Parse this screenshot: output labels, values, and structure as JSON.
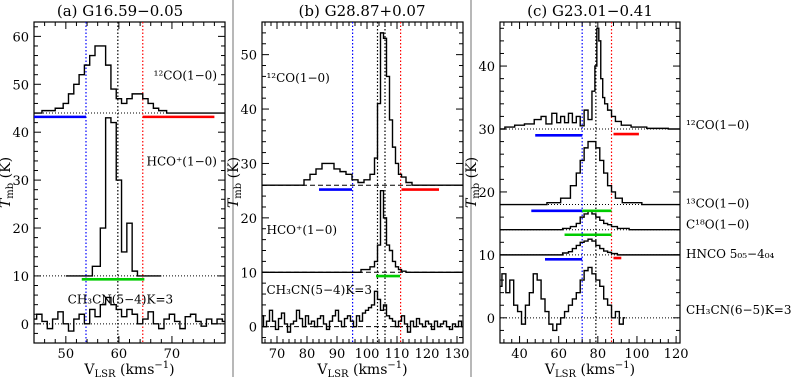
{
  "chart_data": [
    {
      "type": "line",
      "title": "(a) G16.59−0.05",
      "xlabel": "Vₗₛᵣ (kms⁻¹)",
      "xlabel_main": "V",
      "xlabel_sub": "LSR",
      "xlabel_unit": " (kms",
      "xlabel_exp": "−1",
      "xlabel_close": ")",
      "ylabel_main": "T",
      "ylabel_sub": "mb",
      "ylabel_unit": " (K)",
      "xlim": [
        44,
        80
      ],
      "ylim": [
        -4,
        63
      ],
      "xticks": [
        50,
        60,
        70
      ],
      "yticks": [
        0,
        10,
        20,
        30,
        40,
        50,
        60
      ],
      "vlines": [
        {
          "x": 53.8,
          "color": "#0000ff"
        },
        {
          "x": 59.8,
          "color": "#000000"
        },
        {
          "x": 64.5,
          "color": "#ff0000"
        }
      ],
      "series": [
        {
          "name": "12CO(1-0)",
          "label": "¹²CO(1−0)",
          "label_x": 66.5,
          "label_y": 51,
          "baseline": 44,
          "x": [
            44,
            47,
            49,
            50,
            51,
            52,
            53,
            54,
            55,
            56,
            57,
            58,
            59,
            60,
            61,
            62,
            63,
            64,
            65,
            66,
            67,
            68,
            70,
            73,
            76,
            80
          ],
          "y": [
            44,
            44.5,
            45,
            46,
            48,
            50,
            52,
            54,
            56,
            58,
            58,
            54,
            49,
            47,
            46,
            47,
            48,
            48,
            47,
            46,
            45,
            44.5,
            44,
            44,
            44,
            44
          ]
        },
        {
          "name": "HCO+(1-0)",
          "label": "HCO⁺(1−0)",
          "label_x": 66.5,
          "label_y": 33,
          "baseline": 10,
          "x": [
            50,
            54,
            56,
            57,
            58,
            59,
            60,
            61,
            62,
            63,
            64,
            65,
            68
          ],
          "y": [
            10,
            10,
            12,
            20,
            43,
            42,
            30,
            15,
            21,
            11,
            10,
            10,
            10
          ]
        },
        {
          "name": "CH3CN(5-4)K=3",
          "label": "CH₃CN(5−4)K=3",
          "label_x": 56,
          "label_y": 4.2,
          "baseline": 0,
          "x": [
            44,
            45,
            46,
            47,
            48,
            49,
            50,
            51,
            52,
            53,
            54,
            55,
            56,
            57,
            58,
            59,
            60,
            61,
            62,
            63,
            64,
            65,
            66,
            67,
            68,
            69,
            70,
            71,
            72,
            73,
            74,
            75,
            76,
            77,
            78,
            79,
            80
          ],
          "y": [
            1,
            2,
            0.5,
            -1,
            1,
            2.5,
            0,
            -1.5,
            1,
            2,
            0,
            3,
            1.5,
            4,
            5.5,
            4,
            3,
            1.5,
            3,
            2,
            0,
            1,
            2.5,
            0,
            -1,
            1,
            2,
            0.5,
            -1,
            1.5,
            2,
            0.5,
            -0.5,
            1,
            0,
            1,
            0.5
          ]
        }
      ],
      "hbars": [
        {
          "y": 43.2,
          "x1": 44,
          "x2": 53.8,
          "color": "#0000ff"
        },
        {
          "y": 43.2,
          "x1": 64.5,
          "x2": 78,
          "color": "#ff0000"
        },
        {
          "y": 9.3,
          "x1": 53,
          "x2": 64.8,
          "color": "#00cc00"
        }
      ]
    },
    {
      "type": "line",
      "title": "(b) G28.87+0.07",
      "xlabel_main": "V",
      "xlabel_sub": "LSR",
      "xlabel_unit": " (kms",
      "xlabel_exp": "−1",
      "xlabel_close": ")",
      "ylabel_main": "T",
      "ylabel_sub": "mb",
      "ylabel_unit": " (K)",
      "xlim": [
        65,
        132
      ],
      "ylim": [
        -3,
        56
      ],
      "xticks": [
        70,
        80,
        90,
        100,
        110,
        120,
        130
      ],
      "yticks": [
        0,
        10,
        20,
        30,
        40,
        50
      ],
      "vlines": [
        {
          "x": 95.2,
          "color": "#0000ff"
        },
        {
          "x": 103.5,
          "color": "#000000"
        },
        {
          "x": 106.0,
          "color": "#000000"
        },
        {
          "x": 111.2,
          "color": "#ff0000"
        }
      ],
      "series": [
        {
          "name": "12CO(1-0)",
          "label": "¹²CO(1−0)",
          "label_x": 66.5,
          "label_y": 45,
          "baseline": 26,
          "x": [
            65,
            78,
            80,
            82,
            84,
            86,
            88,
            90,
            92,
            94,
            96,
            98,
            100,
            102,
            103,
            104,
            105,
            106,
            107,
            108,
            109,
            110,
            111,
            112,
            114,
            116,
            120,
            132
          ],
          "y": [
            26,
            26,
            27,
            28,
            29,
            30,
            30,
            29,
            28.5,
            28,
            27,
            26.5,
            27,
            28,
            31,
            41,
            54,
            53,
            46,
            38,
            33,
            30,
            28,
            27.5,
            26.5,
            26,
            26,
            26
          ]
        },
        {
          "name": "HCO+(1-0)",
          "label": "HCO⁺(1−0)",
          "label_x": 66.5,
          "label_y": 17,
          "baseline": 10,
          "x": [
            65,
            96,
            100,
            102,
            103,
            104,
            105,
            106,
            107,
            108,
            109,
            110,
            111,
            112,
            114,
            132
          ],
          "y": [
            10,
            10,
            10.5,
            11,
            12,
            15,
            25,
            20,
            15,
            14,
            12,
            11,
            10.5,
            10.2,
            10,
            10
          ]
        },
        {
          "name": "CH3CN(5-4)K=3",
          "label": "CH₃CN(5−4)K=3",
          "label_x": 66.5,
          "label_y": 6,
          "baseline": 0,
          "x": [
            65,
            66,
            67,
            68,
            69,
            70,
            71,
            72,
            73,
            74,
            75,
            76,
            77,
            78,
            79,
            80,
            81,
            82,
            83,
            84,
            85,
            86,
            87,
            88,
            89,
            90,
            91,
            92,
            93,
            94,
            95,
            96,
            97,
            98,
            99,
            100,
            101,
            102,
            103,
            104,
            105,
            106,
            107,
            108,
            109,
            110,
            111,
            112,
            113,
            114,
            115,
            116,
            117,
            118,
            119,
            120,
            121,
            122,
            123,
            124,
            125,
            126,
            127,
            128,
            129,
            130,
            131,
            132
          ],
          "y": [
            2,
            0,
            1,
            3,
            1,
            -0.5,
            1.5,
            2.5,
            0.5,
            -1,
            0.5,
            1,
            3,
            1.5,
            0,
            2,
            0.5,
            1,
            0,
            1.5,
            2,
            0.5,
            -0.5,
            1,
            2,
            3,
            1,
            0,
            1.5,
            2,
            1,
            0,
            2,
            1,
            2.5,
            3,
            3.5,
            4,
            6.5,
            5,
            3,
            4,
            2,
            1.5,
            1,
            0,
            1,
            2,
            0.5,
            -1,
            1,
            0,
            1.5,
            0.5,
            0,
            1,
            0.5,
            -0.5,
            1,
            0,
            0.5,
            1,
            0,
            -0.5,
            0.5,
            0,
            1,
            0
          ]
        }
      ],
      "dashed_baselines": [
        26,
        10,
        0
      ],
      "hbars": [
        {
          "y": 25.2,
          "x1": 84,
          "x2": 95,
          "color": "#0000ff"
        },
        {
          "y": 25.2,
          "x1": 111.5,
          "x2": 124,
          "color": "#ff0000"
        },
        {
          "y": 9.3,
          "x1": 103,
          "x2": 111,
          "color": "#00cc00"
        }
      ]
    },
    {
      "type": "line",
      "title": "(c) G23.01−0.41",
      "xlabel_main": "V",
      "xlabel_sub": "LSR",
      "xlabel_unit": " (kms",
      "xlabel_exp": "−1",
      "xlabel_close": ")",
      "ylabel_main": "T",
      "ylabel_sub": "mb",
      "ylabel_unit": " (K)",
      "xlim": [
        30,
        122
      ],
      "ylim": [
        -4,
        47
      ],
      "xticks": [
        40,
        60,
        80,
        100,
        120
      ],
      "yticks": [
        0,
        10,
        20,
        30,
        40
      ],
      "vlines": [
        {
          "x": 72,
          "color": "#0000ff"
        },
        {
          "x": 79,
          "color": "#000000"
        },
        {
          "x": 87,
          "color": "#ff0000"
        }
      ],
      "series": [
        {
          "name": "12CO(1-0)",
          "label": "¹²CO(1−0)",
          "label_x": 125,
          "label_y": 30,
          "baseline": 30,
          "x": [
            30,
            35,
            40,
            45,
            50,
            52,
            55,
            58,
            60,
            62,
            64,
            66,
            68,
            70,
            72,
            74,
            76,
            78,
            79,
            80,
            81,
            82,
            83,
            84,
            86,
            88,
            90,
            94,
            100,
            110,
            122
          ],
          "y": [
            30,
            30.3,
            30.6,
            30.8,
            31.5,
            32,
            30.8,
            32.5,
            31,
            32,
            31,
            32.5,
            31,
            32,
            30.5,
            33,
            31.5,
            36,
            40,
            46,
            44,
            38,
            35,
            34,
            33,
            32,
            31.2,
            30.6,
            30.3,
            30.1,
            30
          ]
        },
        {
          "name": "13CO(1-0)",
          "label": "¹³CO(1−0)",
          "label_x": 125,
          "label_y": 17.5,
          "baseline": 18,
          "x": [
            30,
            50,
            58,
            64,
            68,
            70,
            72,
            74,
            76,
            78,
            80,
            82,
            84,
            86,
            88,
            90,
            95,
            110,
            122
          ],
          "y": [
            18,
            18,
            18.3,
            19,
            21,
            23,
            25,
            27,
            28,
            28,
            27,
            25,
            23,
            21,
            20,
            19,
            18.3,
            18,
            18
          ]
        },
        {
          "name": "C18O(1-0)",
          "label": "C¹⁸O(1−0)",
          "label_x": 125,
          "label_y": 14.2,
          "baseline": 14,
          "x": [
            30,
            60,
            64,
            68,
            70,
            72,
            74,
            76,
            78,
            80,
            82,
            84,
            86,
            88,
            92,
            100,
            122
          ],
          "y": [
            14,
            14,
            14.2,
            14.5,
            15,
            16,
            16.5,
            17,
            16.5,
            16,
            15.5,
            15,
            14.8,
            14.5,
            14.2,
            14,
            14
          ]
        },
        {
          "name": "HNCO 505-404",
          "label": "HNCO 5₀₅−4₀₄",
          "label_x": 125,
          "label_y": 9.5,
          "baseline": 10,
          "x": [
            30,
            60,
            64,
            66,
            68,
            70,
            72,
            74,
            76,
            78,
            80,
            82,
            84,
            86,
            88,
            92,
            100,
            122
          ],
          "y": [
            10,
            10,
            10.3,
            10.5,
            11,
            11.5,
            12,
            12.2,
            12.5,
            12.2,
            11.5,
            11,
            10.6,
            10.4,
            10.2,
            10,
            10,
            10
          ]
        },
        {
          "name": "CH3CN(6-5)K=3",
          "label": "CH₃CN(6−5)K=3",
          "label_x": 125,
          "label_y": 0.6,
          "baseline": 0,
          "x": [
            30,
            32,
            34,
            36,
            38,
            40,
            42,
            44,
            46,
            48,
            50,
            52,
            54,
            56,
            58,
            60,
            62,
            64,
            66,
            68,
            70,
            72,
            74,
            76,
            78,
            80,
            82,
            84,
            86,
            88,
            90,
            92,
            94
          ],
          "y": [
            5,
            7,
            4,
            6,
            2,
            1,
            -1,
            2,
            4,
            7,
            6,
            3,
            1,
            -1,
            -2,
            -1,
            0,
            1,
            2,
            3,
            4,
            6,
            7.5,
            8,
            7,
            6,
            5,
            3,
            2,
            0,
            1,
            -1,
            0
          ]
        }
      ],
      "hbars": [
        {
          "y": 29,
          "x1": 48,
          "x2": 72,
          "color": "#0000ff"
        },
        {
          "y": 29.2,
          "x1": 88,
          "x2": 101,
          "color": "#ff0000"
        },
        {
          "y": 17,
          "x1": 46,
          "x2": 72,
          "color": "#0000ff"
        },
        {
          "y": 17,
          "x1": 72,
          "x2": 87,
          "color": "#00cc00"
        },
        {
          "y": 13.2,
          "x1": 63,
          "x2": 87,
          "color": "#00cc00"
        },
        {
          "y": 9.3,
          "x1": 53,
          "x2": 72,
          "color": "#0000ff"
        },
        {
          "y": 9.5,
          "x1": 88,
          "x2": 92,
          "color": "#ff0000"
        }
      ]
    }
  ]
}
